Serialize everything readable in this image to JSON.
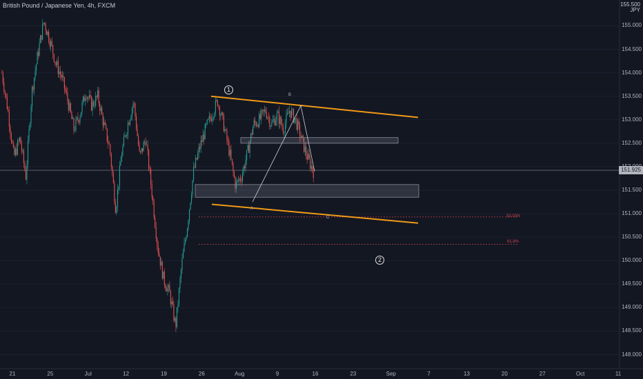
{
  "header": {
    "title": "British Pound / Japanese Yen, 4h, FXCM",
    "currency_badge": "JPY",
    "top_clip_label": "155.500"
  },
  "chart_data": {
    "type": "candlestick",
    "title": "British Pound / Japanese Yen, 4h, FXCM",
    "ylim": [
      147.7,
      155.55
    ],
    "y_ticks": [
      "155.000",
      "154.500",
      "154.000",
      "153.500",
      "153.000",
      "152.500",
      "152.000",
      "151.500",
      "151.000",
      "150.500",
      "150.000",
      "149.500",
      "149.000",
      "148.500",
      "148.000"
    ],
    "x_ticks": [
      "21",
      "25",
      "Jul",
      "12",
      "19",
      "26",
      "Aug",
      "9",
      "16",
      "23",
      "Sep",
      "7",
      "13",
      "20",
      "27",
      "Oct",
      "11"
    ],
    "current_price": "151.925",
    "colors": {
      "up": "#26a69a",
      "down": "#ef5350",
      "trendline": "#f29a16",
      "fib": "#c8434f",
      "zone": "#6b7082"
    },
    "price_path": [
      154.0,
      153.2,
      152.2,
      152.6,
      151.8,
      153.6,
      154.4,
      155.1,
      154.7,
      154.2,
      153.9,
      153.4,
      152.8,
      153.1,
      153.6,
      153.3,
      153.5,
      152.9,
      152.4,
      151.1,
      152.3,
      152.9,
      153.4,
      152.2,
      152.6,
      151.5,
      150.3,
      149.6,
      149.3,
      148.6,
      149.9,
      150.8,
      151.9,
      152.4,
      152.8,
      153.1,
      153.4,
      152.9,
      152.3,
      151.6,
      151.8,
      152.3,
      152.9,
      153.0,
      153.2,
      152.9,
      153.1,
      152.8,
      153.2,
      153.0,
      152.6,
      152.2,
      151.9
    ],
    "annotations": {
      "wave_1": "1",
      "wave_2": "2",
      "point_a": "A",
      "point_b": "B",
      "point_c": "C",
      "fib_upper": "50.00%",
      "fib_lower": "61.8%"
    },
    "fib_levels": [
      150.93,
      150.35
    ],
    "zones": [
      [
        152.5,
        152.62
      ],
      [
        151.35,
        151.62
      ]
    ],
    "trendlines": [
      {
        "name": "upper",
        "from": [
          153.5,
          0
        ],
        "to": [
          153.05,
          1
        ]
      },
      {
        "name": "lower",
        "from": [
          151.2,
          0
        ],
        "to": [
          150.8,
          1
        ]
      }
    ]
  }
}
